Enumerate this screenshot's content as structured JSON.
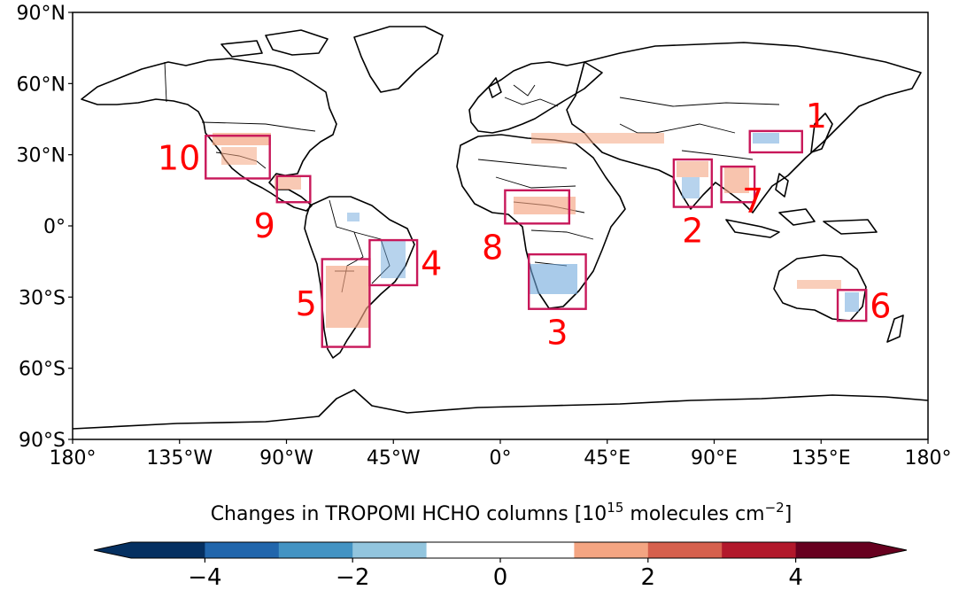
{
  "map": {
    "lat_ticks": [
      "90°N",
      "60°N",
      "30°N",
      "0°",
      "30°S",
      "60°S",
      "90°S"
    ],
    "lon_ticks": [
      "180°",
      "135°W",
      "90°W",
      "45°W",
      "0°",
      "45°E",
      "90°E",
      "135°E",
      "180°"
    ],
    "regions": [
      {
        "id": "1",
        "label": "1",
        "lon": [
          105,
          127
        ],
        "lat": [
          31,
          40
        ]
      },
      {
        "id": "2",
        "label": "2",
        "lon": [
          73,
          89
        ],
        "lat": [
          8,
          28
        ]
      },
      {
        "id": "3",
        "label": "3",
        "lon": [
          12,
          36
        ],
        "lat": [
          -35,
          -12
        ]
      },
      {
        "id": "4",
        "label": "4",
        "lon": [
          -55,
          -35
        ],
        "lat": [
          -25,
          -6
        ]
      },
      {
        "id": "5",
        "label": "5",
        "lon": [
          -75,
          -55
        ],
        "lat": [
          -51,
          -14
        ]
      },
      {
        "id": "6",
        "label": "6",
        "lon": [
          142,
          154
        ],
        "lat": [
          -40,
          -27
        ]
      },
      {
        "id": "7",
        "label": "7",
        "lon": [
          93,
          107
        ],
        "lat": [
          10,
          25
        ]
      },
      {
        "id": "8",
        "label": "8",
        "lon": [
          2,
          29
        ],
        "lat": [
          1,
          15
        ]
      },
      {
        "id": "9",
        "label": "9",
        "lon": [
          -94,
          -80
        ],
        "lat": [
          10,
          21
        ]
      },
      {
        "id": "10",
        "label": "10",
        "lon": [
          -124,
          -97
        ],
        "lat": [
          20,
          38
        ]
      }
    ]
  },
  "colorbar": {
    "title_prefix": "Changes in TROPOMI HCHO columns [10",
    "title_sup": "15",
    "title_mid": " molecules cm",
    "title_sup2": "−2",
    "title_suffix": "]",
    "ticks": [
      "−4",
      "−2",
      "0",
      "2",
      "4"
    ],
    "range": [
      -5,
      5
    ],
    "bins": [
      -5,
      -4,
      -3,
      -2,
      -1,
      1,
      2,
      3,
      4,
      5
    ],
    "colors": [
      "#053061",
      "#2166ac",
      "#4393c3",
      "#92c5de",
      "#ffffff",
      "#f4a582",
      "#d6604d",
      "#b2182b",
      "#67001f"
    ],
    "extend": "both"
  }
}
